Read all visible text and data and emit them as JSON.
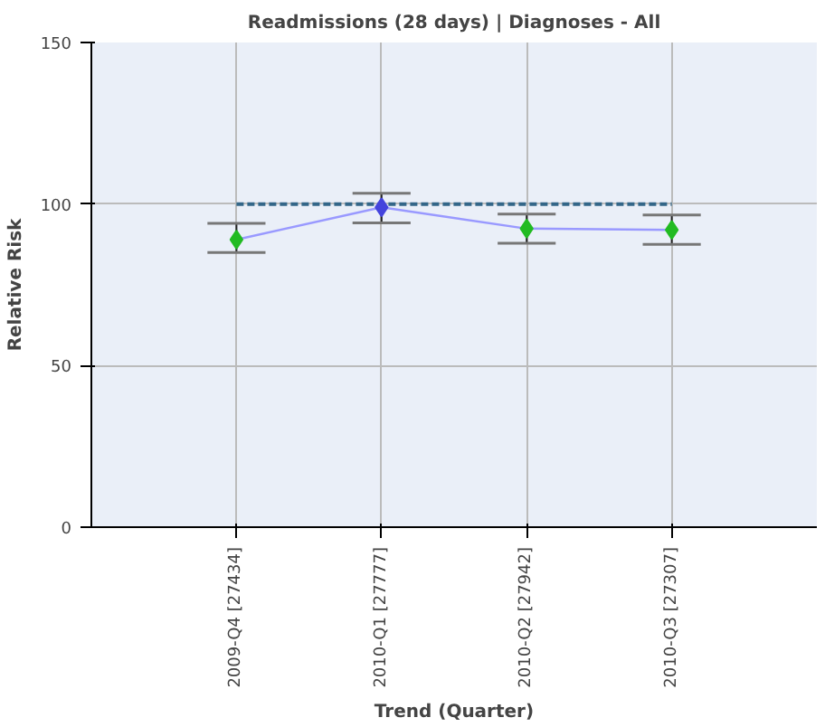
{
  "chart_data": {
    "type": "line",
    "title": "Readmissions (28 days) | Diagnoses - All",
    "xlabel": "Trend (Quarter)",
    "ylabel": "Relative Risk",
    "categories": [
      "2009-Q4 [27434]",
      "2010-Q1 [27777]",
      "2010-Q2 [27942]",
      "2010-Q3 [27307]"
    ],
    "series": [
      {
        "color": "#9999ff",
        "colors": [
          "#22bb22",
          "#4444dd",
          "#22bb22",
          "#22bb22"
        ],
        "values": [
          89,
          99,
          92.4,
          92
        ],
        "errors": [
          [
            85,
            94
          ],
          [
            94.2,
            103.3
          ],
          [
            87.9,
            96.9
          ],
          [
            87.5,
            96.6
          ]
        ]
      }
    ],
    "ylim": [
      0,
      150
    ],
    "yticks": [
      0,
      50,
      100,
      150
    ],
    "grid": true,
    "marker": "diamond",
    "ref_lines": [
      {
        "axis": "y",
        "value": 100,
        "color": "#336688",
        "line_style": "dashed"
      }
    ]
  }
}
